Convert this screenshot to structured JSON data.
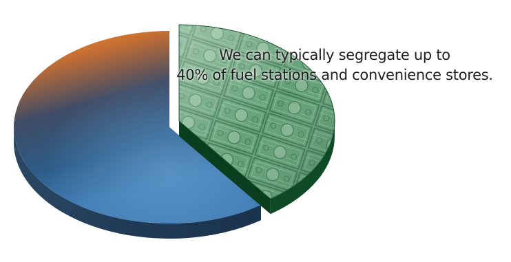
{
  "caption": {
    "line1": "We can typically segregate up to",
    "line2": "40% of fuel stations and convenience stores."
  },
  "chart_data": {
    "type": "pie",
    "style": "3d-exploded",
    "highlighted_percent": 40,
    "slices": [
      {
        "value": 40,
        "color": "#2f6b46",
        "texture": "money",
        "exploded": true
      },
      {
        "value": 60,
        "color": "#2e5b86",
        "gradient_to": "#e07a2a",
        "exploded": false
      }
    ]
  }
}
